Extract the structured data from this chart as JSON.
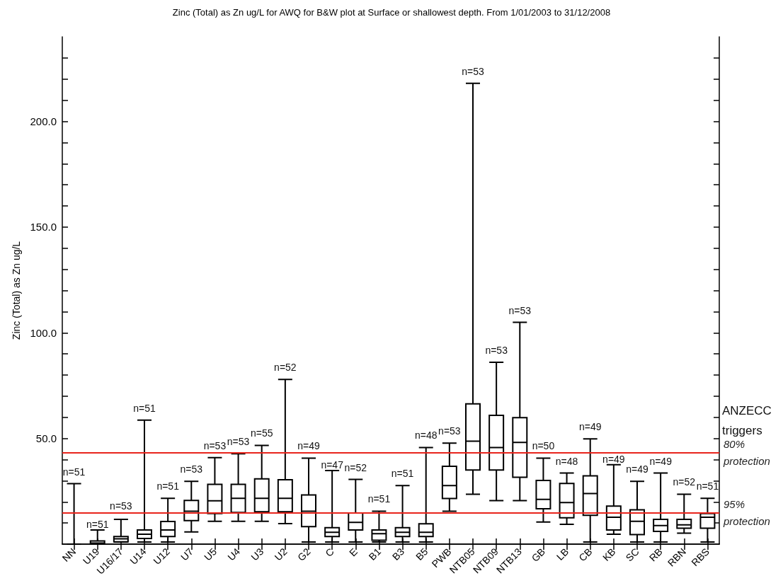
{
  "chart_data": {
    "type": "box",
    "title": "Zinc (Total) as Zn ug/L for AWQ for B&W plot at Surface or shallowest depth. From 1/01/2003 to 31/12/2008",
    "ylabel": "Zinc (Total) as Zn ug/L",
    "categories": [
      "NN",
      "U19",
      "U16/17",
      "U14",
      "U12",
      "U7",
      "U5",
      "U4",
      "U3",
      "U2",
      "G2",
      "C",
      "E",
      "B1",
      "B3",
      "B5",
      "PWB",
      "NTB05",
      "NTB09",
      "NTB13",
      "GB",
      "LB",
      "CB",
      "KB",
      "SC",
      "RB",
      "RBN",
      "RBS"
    ],
    "boxes": [
      {
        "low": 0,
        "q1": 0,
        "median": 0,
        "q3": 0,
        "high": 28.6
      },
      {
        "low": 0,
        "q1": 0,
        "median": 0.5,
        "q3": 1.5,
        "high": 6.7
      },
      {
        "low": 1,
        "q1": 1.1,
        "median": 2.5,
        "q3": 3.6,
        "high": 11.7
      },
      {
        "low": 1,
        "q1": 2.7,
        "median": 4.7,
        "q3": 6.7,
        "high": 58.7
      },
      {
        "low": 1,
        "q1": 3.6,
        "median": 6.7,
        "q3": 10.7,
        "high": 21.7
      },
      {
        "low": 5.8,
        "q1": 11.1,
        "median": 15.6,
        "q3": 20.7,
        "high": 29.7
      },
      {
        "low": 10.8,
        "q1": 14.5,
        "median": 20.5,
        "q3": 28.3,
        "high": 40.9
      },
      {
        "low": 10.8,
        "q1": 15,
        "median": 21.7,
        "q3": 28.3,
        "high": 42.8
      },
      {
        "low": 10.8,
        "q1": 15.3,
        "median": 21.7,
        "q3": 30.9,
        "high": 46.7
      },
      {
        "low": 9.7,
        "q1": 15.3,
        "median": 21.7,
        "q3": 30.5,
        "high": 77.9
      },
      {
        "low": 1,
        "q1": 8.3,
        "median": 15.6,
        "q3": 23.3,
        "high": 40.7
      },
      {
        "low": 1,
        "q1": 3.6,
        "median": 5.6,
        "q3": 7.8,
        "high": 34.8
      },
      {
        "low": 1,
        "q1": 6.7,
        "median": 10.3,
        "q3": 14.7,
        "high": 30.6
      },
      {
        "low": 1,
        "q1": 1.8,
        "median": 4.9,
        "q3": 6.7,
        "high": 15.6
      },
      {
        "low": 1,
        "q1": 3.6,
        "median": 5.6,
        "q3": 7.8,
        "high": 27.7
      },
      {
        "low": 1,
        "q1": 3.6,
        "median": 5.6,
        "q3": 9.6,
        "high": 45.7
      },
      {
        "low": 15.6,
        "q1": 21.6,
        "median": 27.7,
        "q3": 36.8,
        "high": 47.8
      },
      {
        "low": 23.6,
        "q1": 35.1,
        "median": 48.7,
        "q3": 66.4,
        "high": 218
      },
      {
        "low": 20.6,
        "q1": 35.1,
        "median": 45.7,
        "q3": 60.9,
        "high": 86
      },
      {
        "low": 20.6,
        "q1": 31.6,
        "median": 48.1,
        "q3": 59.8,
        "high": 104.9
      },
      {
        "low": 10.5,
        "q1": 16.7,
        "median": 21.2,
        "q3": 30.1,
        "high": 40.7
      },
      {
        "low": 9.4,
        "q1": 12.5,
        "median": 19.7,
        "q3": 28.7,
        "high": 33.6
      },
      {
        "low": 1,
        "q1": 13.6,
        "median": 23.9,
        "q3": 32.3,
        "high": 49.8
      },
      {
        "low": 4.7,
        "q1": 6.7,
        "median": 12.7,
        "q3": 18,
        "high": 37.6
      },
      {
        "low": 1,
        "q1": 4.5,
        "median": 10.8,
        "q3": 16.2,
        "high": 29.7
      },
      {
        "low": 1,
        "q1": 6,
        "median": 8.8,
        "q3": 11.7,
        "high": 33.6
      },
      {
        "low": 5.2,
        "q1": 7.5,
        "median": 9.1,
        "q3": 11.7,
        "high": 23.6
      },
      {
        "low": 1,
        "q1": 7.5,
        "median": 12.7,
        "q3": 14.5,
        "high": 21.7
      }
    ],
    "color": "#000000",
    "ylim": [
      0,
      240
    ],
    "yticks": [
      {
        "value": 10,
        "label": null
      },
      {
        "value": 20,
        "label": null
      },
      {
        "value": 30,
        "label": null
      },
      {
        "value": 40,
        "label": null
      },
      {
        "value": 50,
        "label": "50.0"
      },
      {
        "value": 60,
        "label": null
      },
      {
        "value": 70,
        "label": null
      },
      {
        "value": 80,
        "label": null
      },
      {
        "value": 90,
        "label": null
      },
      {
        "value": 100,
        "label": "100.0"
      },
      {
        "value": 110,
        "label": null
      },
      {
        "value": 120,
        "label": null
      },
      {
        "value": 130,
        "label": null
      },
      {
        "value": 140,
        "label": null
      },
      {
        "value": 150,
        "label": "150.0"
      },
      {
        "value": 160,
        "label": null
      },
      {
        "value": 170,
        "label": null
      },
      {
        "value": 180,
        "label": null
      },
      {
        "value": 190,
        "label": null
      },
      {
        "value": 200,
        "label": "200.0"
      },
      {
        "value": 210,
        "label": null
      },
      {
        "value": 220,
        "label": null
      },
      {
        "value": 230,
        "label": null
      }
    ],
    "grid": false,
    "ref_lines": [
      {
        "axis": "y",
        "value": 43.3,
        "label": "80% protection",
        "color": "#e8241c"
      },
      {
        "axis": "y",
        "value": 14.8,
        "label": "95% protection",
        "color": "#e8241c"
      }
    ],
    "annotations": [
      "ANZECC triggers",
      {
        "text": "n=51",
        "x": "NN",
        "y": 28.6
      },
      {
        "text": "n=51",
        "x": "U19",
        "y": 6.7
      },
      {
        "text": "n=53",
        "x": "U16/17",
        "y": 11.7
      },
      {
        "text": "n=51",
        "x": "U14",
        "y": 58.7
      },
      {
        "text": "n=51",
        "x": "U12",
        "y": 21.7
      },
      {
        "text": "n=53",
        "x": "U7",
        "y": 29.7
      },
      {
        "text": "n=53",
        "x": "U5",
        "y": 40.9
      },
      {
        "text": "n=53",
        "x": "U4",
        "y": 42.8
      },
      {
        "text": "n=55",
        "x": "U3",
        "y": 46.7
      },
      {
        "text": "n=52",
        "x": "U2",
        "y": 77.9
      },
      {
        "text": "n=49",
        "x": "G2",
        "y": 40.7
      },
      {
        "text": "n=47",
        "x": "C",
        "y": 34.8
      },
      {
        "text": "n=52",
        "x": "E",
        "y": 30.6
      },
      {
        "text": "n=51",
        "x": "B1",
        "y": 15.6
      },
      {
        "text": "n=51",
        "x": "B3",
        "y": 27.7
      },
      {
        "text": "n=48",
        "x": "B5",
        "y": 45.7
      },
      {
        "text": "n=53",
        "x": "PWB",
        "y": 47.8
      },
      {
        "text": "n=53",
        "x": "NTB05",
        "y": 218
      },
      {
        "text": "n=53",
        "x": "NTB09",
        "y": 86
      },
      {
        "text": "n=53",
        "x": "NTB13",
        "y": 104.9
      },
      {
        "text": "n=50",
        "x": "GB",
        "y": 40.7
      },
      {
        "text": "n=48",
        "x": "LB",
        "y": 33.6
      },
      {
        "text": "n=49",
        "x": "CB",
        "y": 49.8
      },
      {
        "text": "n=49",
        "x": "KB",
        "y": 37.6
      },
      {
        "text": "n=49",
        "x": "SC",
        "y": 29.7
      },
      {
        "text": "n=49",
        "x": "RB",
        "y": 33.6
      },
      {
        "text": "n=52",
        "x": "RBN",
        "y": 23.6
      },
      {
        "text": "n=51",
        "x": "RBS",
        "y": 21.7
      }
    ]
  }
}
